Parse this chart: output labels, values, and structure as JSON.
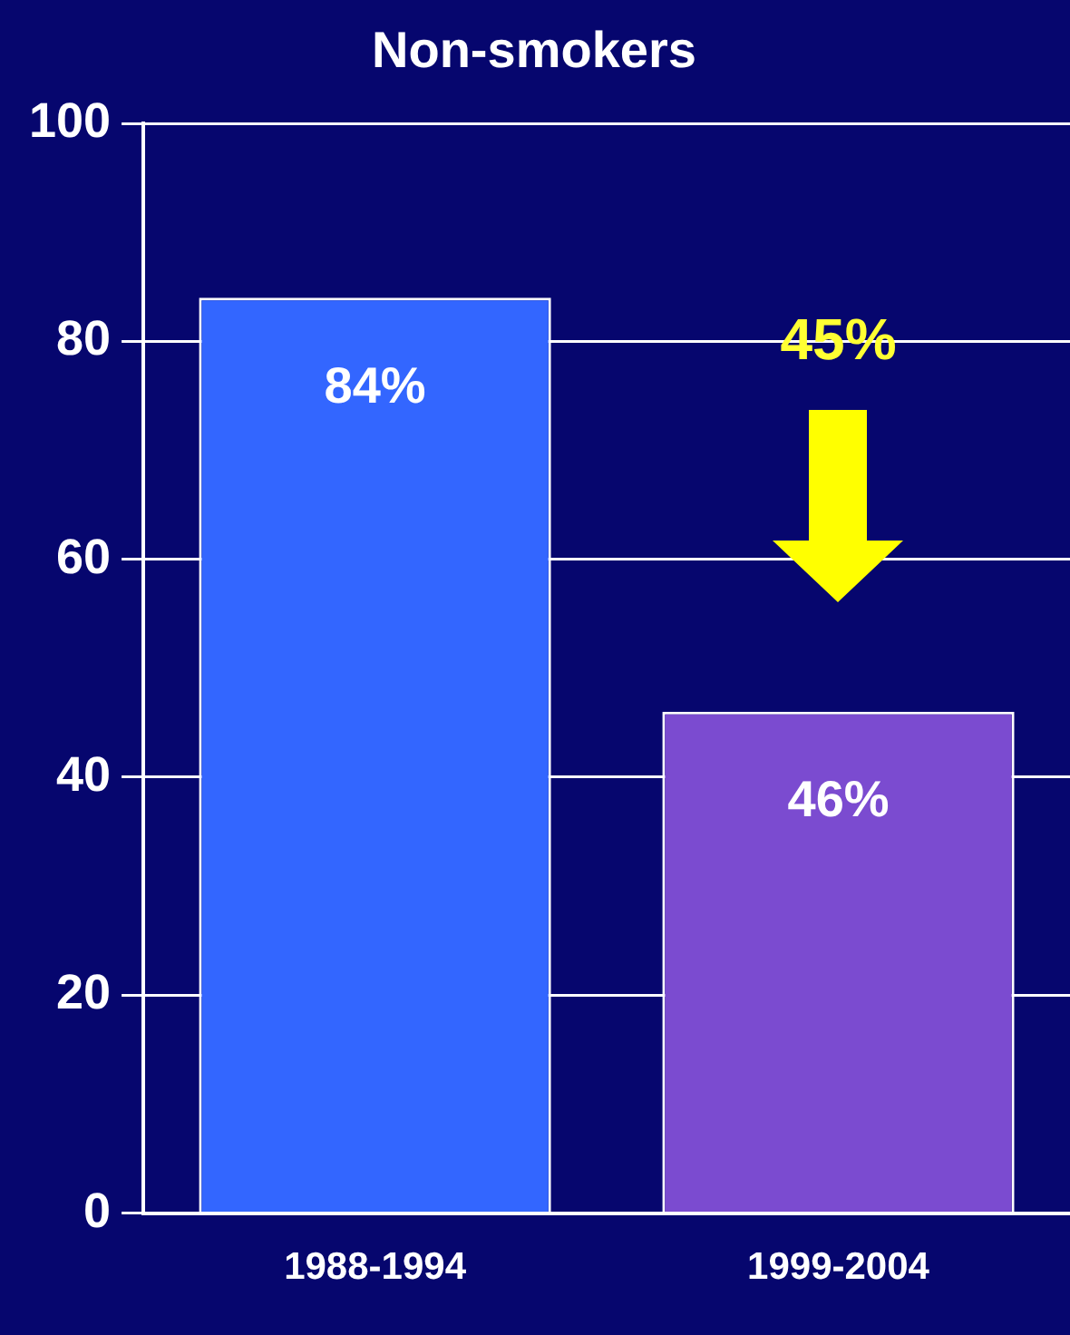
{
  "chart_data": {
    "type": "bar",
    "title": "Non-smokers",
    "categories": [
      "1988-1994",
      "1999-2004"
    ],
    "values": [
      84,
      46
    ],
    "colors": [
      "#3366ff",
      "#7b4bd0"
    ],
    "value_labels": [
      "84%",
      "46%"
    ],
    "ylim": [
      0,
      100
    ],
    "yticks": [
      0,
      20,
      40,
      60,
      80,
      100
    ],
    "grid": "y",
    "annotations": [
      "45%"
    ]
  }
}
